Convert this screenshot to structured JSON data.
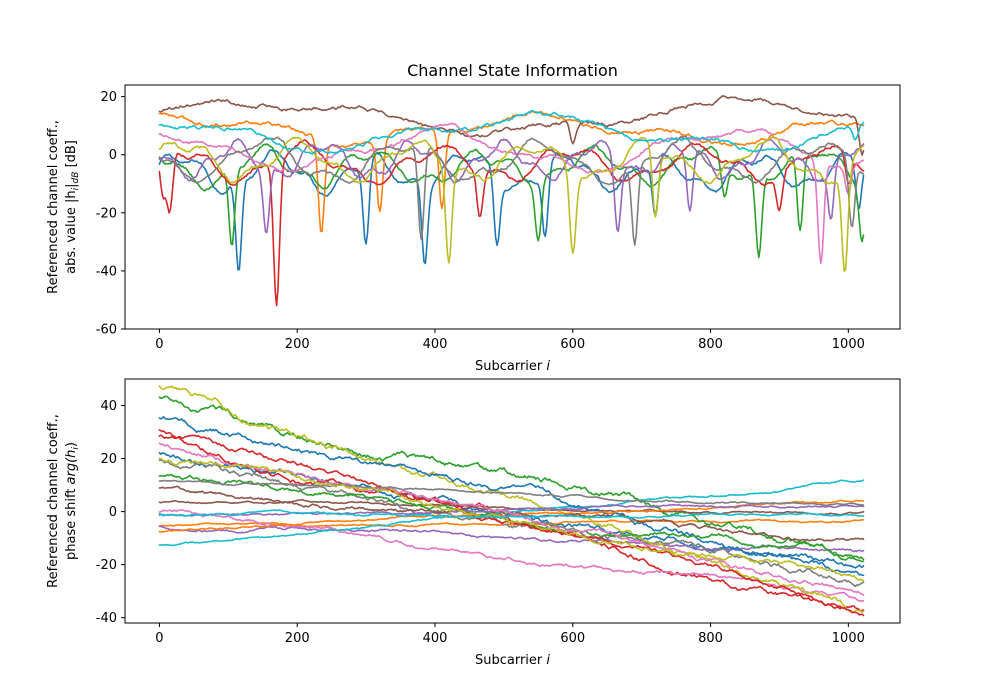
{
  "colors": [
    "#1f77b4",
    "#ff7f0e",
    "#2ca02c",
    "#d62728",
    "#9467bd",
    "#8c564b",
    "#e377c2",
    "#7f7f7f",
    "#bcbd22",
    "#17becf"
  ],
  "chart_data": [
    {
      "type": "line",
      "title": "Channel State Information",
      "xlabel_text": "Subcarrier ",
      "xlabel_var": "i",
      "ylabel_line1": "Referenced channel coeff.,",
      "ylabel_line2": "abs. value |h",
      "ylabel_sub": "i",
      "ylabel_mid": "|",
      "ylabel_sub2": "dB",
      "ylabel_end": " [dB]",
      "xlim": [
        -50,
        1075
      ],
      "ylim": [
        -60,
        24
      ],
      "xticks": [
        0,
        200,
        400,
        600,
        800,
        1000
      ],
      "yticks": [
        -60,
        -40,
        -20,
        0,
        20
      ],
      "grid": false,
      "x_points": 1024,
      "series": [
        {
          "base": -6,
          "amp": 5,
          "period": 140,
          "phase": 0.3,
          "dips": [
            [
              115,
              -42
            ],
            [
              300,
              -37
            ],
            [
              385,
              -38
            ],
            [
              490,
              -33
            ],
            [
              560,
              -33
            ],
            [
              720,
              -30
            ],
            [
              1015,
              -26
            ]
          ]
        },
        {
          "base": 9,
          "amp": 4,
          "period": 520,
          "phase": 1.2,
          "dips": [
            [
              235,
              -27
            ],
            [
              320,
              -20
            ],
            [
              410,
              -22
            ]
          ]
        },
        {
          "base": -4,
          "amp": 5,
          "period": 160,
          "phase": 2.0,
          "dips": [
            [
              105,
              -34
            ],
            [
              550,
              -28
            ],
            [
              820,
              -20
            ],
            [
              870,
              -37
            ],
            [
              930,
              -36
            ],
            [
              1020,
              -28
            ]
          ]
        },
        {
          "base": -3,
          "amp": 5,
          "period": 190,
          "phase": 0.8,
          "dips": [
            [
              5,
              -24
            ],
            [
              15,
              -28
            ],
            [
              170,
              -56
            ],
            [
              465,
              -22
            ],
            [
              900,
              -20
            ],
            [
              1000,
              -18
            ]
          ]
        },
        {
          "base": -2,
          "amp": 5,
          "period": 130,
          "phase": 2.6,
          "dips": [
            [
              155,
              -28
            ],
            [
              665,
              -30
            ],
            [
              770,
              -26
            ],
            [
              975,
              -25
            ]
          ]
        },
        {
          "base": 13,
          "amp": 5,
          "period": 700,
          "phase": 0.2,
          "dips": [
            [
              600,
              2
            ],
            [
              1020,
              -5
            ]
          ]
        },
        {
          "base": 2,
          "amp": 6,
          "period": 420,
          "phase": 1.8,
          "dips": [
            [
              960,
              -37
            ],
            [
              1000,
              -12
            ]
          ]
        },
        {
          "base": -2,
          "amp": 6,
          "period": 200,
          "phase": 3.0,
          "dips": [
            [
              380,
              -38
            ],
            [
              690,
              -34
            ],
            [
              1005,
              -29
            ]
          ]
        },
        {
          "base": -2,
          "amp": 6,
          "period": 170,
          "phase": 0.4,
          "dips": [
            [
              420,
              -38
            ],
            [
              600,
              -33
            ],
            [
              720,
              -29
            ],
            [
              995,
              -40
            ]
          ]
        },
        {
          "base": 8,
          "amp": 5,
          "period": 600,
          "phase": 2.2,
          "dips": [
            [
              565,
              3
            ],
            [
              1010,
              -2
            ]
          ]
        }
      ]
    },
    {
      "type": "line",
      "title": "",
      "xlabel_text": "Subcarrier ",
      "xlabel_var": "i",
      "ylabel_line1": "Referenced channel coeff.,",
      "ylabel_line2": "phase shift ",
      "ylabel_func": "arg",
      "ylabel_open": "(h",
      "ylabel_sub": "i",
      "ylabel_close": ")",
      "xlim": [
        -50,
        1075
      ],
      "ylim": [
        -42,
        50
      ],
      "xticks": [
        0,
        200,
        400,
        600,
        800,
        1000
      ],
      "yticks": [
        -40,
        -20,
        0,
        20,
        40
      ],
      "grid": false,
      "x_points": 1024,
      "series": [
        {
          "start": 22,
          "end": -24,
          "wiggle": 1.2
        },
        {
          "start": -6,
          "end": -3,
          "wiggle": 0.4
        },
        {
          "start": 41,
          "end": -16,
          "wiggle": 1.4
        },
        {
          "start": 28,
          "end": -38,
          "wiggle": 1.2
        },
        {
          "start": -5,
          "end": -15,
          "wiggle": 0.6
        },
        {
          "start": 4,
          "end": -1,
          "wiggle": 0.4
        },
        {
          "start": 0,
          "end": -34,
          "wiggle": 0.8
        },
        {
          "start": 18,
          "end": -25,
          "wiggle": 1.2
        },
        {
          "start": 45,
          "end": -36,
          "wiggle": 1.4
        },
        {
          "start": -13,
          "end": 12,
          "wiggle": 0.4
        },
        {
          "start": 36,
          "end": -22,
          "wiggle": 1.2
        },
        {
          "start": -7,
          "end": 4,
          "wiggle": 0.4
        },
        {
          "start": 14,
          "end": -18,
          "wiggle": 1.0
        },
        {
          "start": 30,
          "end": -37,
          "wiggle": 1.0
        },
        {
          "start": -2,
          "end": 3,
          "wiggle": 0.4
        },
        {
          "start": 8,
          "end": -10,
          "wiggle": 0.8
        },
        {
          "start": 26,
          "end": -30,
          "wiggle": 1.0
        },
        {
          "start": 12,
          "end": 2,
          "wiggle": 0.4
        },
        {
          "start": 21,
          "end": -27,
          "wiggle": 1.0
        },
        {
          "start": -1,
          "end": -2,
          "wiggle": 0.4
        }
      ]
    }
  ]
}
